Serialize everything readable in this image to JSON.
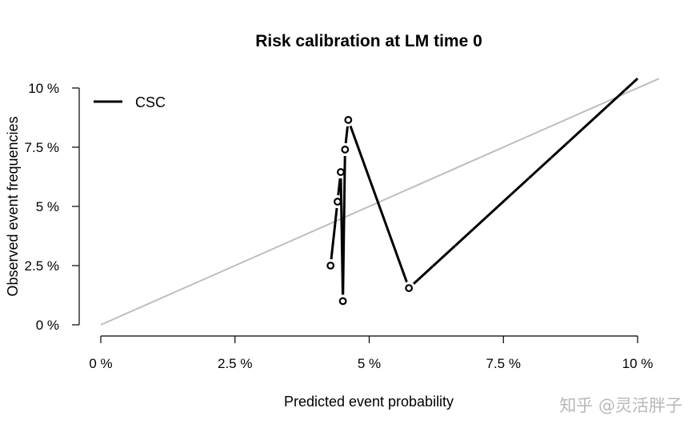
{
  "chart_data": {
    "type": "line",
    "title": "Risk calibration at LM time 0",
    "xlabel": "Predicted event probability",
    "ylabel": "Observed event frequencies",
    "xlim": [
      0,
      10
    ],
    "ylim": [
      0,
      10
    ],
    "x_ticks": [
      0,
      2.5,
      5,
      7.5,
      10
    ],
    "x_tick_labels": [
      "0 %",
      "2.5 %",
      "5 %",
      "7.5 %",
      "10 %"
    ],
    "y_ticks": [
      0,
      2.5,
      5,
      7.5,
      10
    ],
    "y_tick_labels": [
      "0 %",
      "2.5 %",
      "5 %",
      "7.5 %",
      "10 %"
    ],
    "reference_line": {
      "name": "diagonal",
      "color": "#bebebe",
      "x": [
        0,
        10.4
      ],
      "y": [
        0,
        10.4
      ]
    },
    "series": [
      {
        "name": "CSC",
        "color": "#000000",
        "points": [
          {
            "x": 4.28,
            "y": 2.5
          },
          {
            "x": 4.41,
            "y": 5.2
          },
          {
            "x": 4.47,
            "y": 6.45
          },
          {
            "x": 4.51,
            "y": 1.0
          },
          {
            "x": 4.55,
            "y": 7.4
          },
          {
            "x": 4.61,
            "y": 8.65
          },
          {
            "x": 5.74,
            "y": 1.55
          }
        ],
        "tail_to": {
          "x": 10.0,
          "y": 10.4
        }
      }
    ],
    "legend": {
      "position": "top-left",
      "entries": [
        "CSC"
      ]
    }
  },
  "watermark": "知乎 @灵活胖子"
}
